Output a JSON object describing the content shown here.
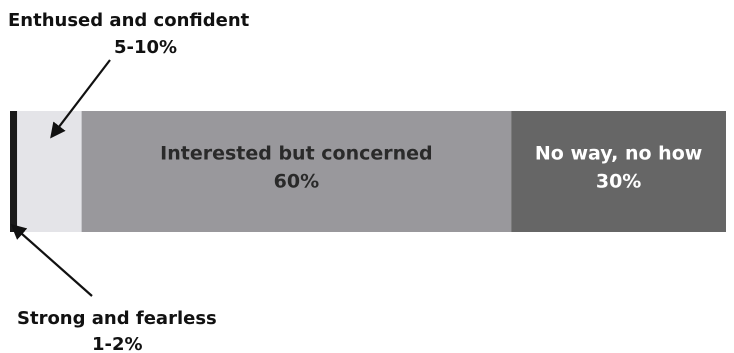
{
  "chart_data": {
    "type": "bar",
    "orientation": "horizontal-stacked",
    "segments": [
      {
        "label": "Strong and fearless",
        "value_text": "1-2%",
        "value": 1,
        "color": "#1a1a1a",
        "label_placement": "callout-below"
      },
      {
        "label": "Enthused and confident",
        "value_text": "5-10%",
        "value": 9,
        "color": "#e4e4e8",
        "label_placement": "callout-above"
      },
      {
        "label": "Interested but concerned",
        "value_text": "60%",
        "value": 60,
        "color": "#99989c",
        "label_placement": "inside"
      },
      {
        "label": "No way, no how",
        "value_text": "30%",
        "value": 30,
        "color": "#666666",
        "label_placement": "inside"
      }
    ],
    "total": 100,
    "label_colors": {
      "inside_dark_segment": "#ffffff",
      "inside_light_segment": "#2a2a2a",
      "callout": "#111111"
    }
  }
}
